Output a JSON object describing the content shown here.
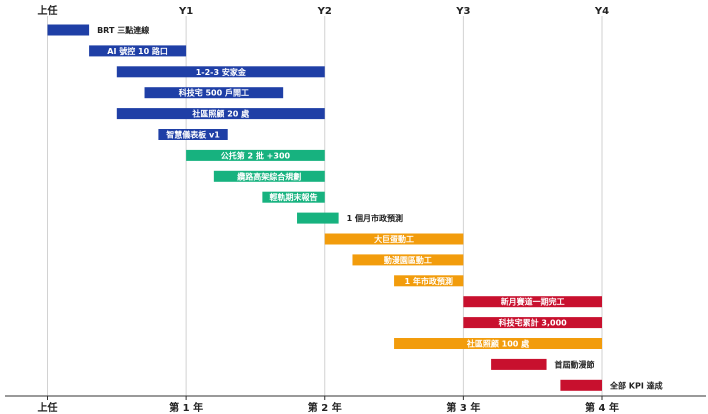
{
  "chart_data": {
    "type": "bar",
    "subtype": "gantt",
    "x_unit": "quarter",
    "xlim": [
      0,
      16
    ],
    "top_ticks": [
      {
        "x": 0,
        "label": "上任"
      },
      {
        "x": 4,
        "label": "Y1"
      },
      {
        "x": 8,
        "label": "Y2"
      },
      {
        "x": 12,
        "label": "Y3"
      },
      {
        "x": 16,
        "label": "Y4"
      }
    ],
    "bottom_ticks": [
      {
        "x": 0,
        "label": "上任"
      },
      {
        "x": 4,
        "label": "第 1 年"
      },
      {
        "x": 8,
        "label": "第 2 年"
      },
      {
        "x": 12,
        "label": "第 3 年"
      },
      {
        "x": 16,
        "label": "第 4 年"
      }
    ],
    "tasks": [
      {
        "label": "BRT 三點連線",
        "start": 0,
        "end": 1.2,
        "color": "#1f3fa6",
        "label_position": "outside"
      },
      {
        "label": "AI 號控 10 路口",
        "start": 1.2,
        "end": 4,
        "color": "#1f3fa6",
        "label_position": "inside"
      },
      {
        "label": "1-2-3 安家金",
        "start": 2,
        "end": 8,
        "color": "#1f3fa6",
        "label_position": "inside"
      },
      {
        "label": "科技宅 500 戶開工",
        "start": 2.8,
        "end": 6.8,
        "color": "#1f3fa6",
        "label_position": "inside"
      },
      {
        "label": "社區照顧 20 處",
        "start": 2,
        "end": 8,
        "color": "#1f3fa6",
        "label_position": "inside"
      },
      {
        "label": "智慧儀表板 v1",
        "start": 3.2,
        "end": 5.2,
        "color": "#1f3fa6",
        "label_position": "inside"
      },
      {
        "label": "公托第 2 批 +300",
        "start": 4,
        "end": 8,
        "color": "#17b27f",
        "label_position": "inside"
      },
      {
        "label": "纜路高架綜合規劃",
        "start": 4.8,
        "end": 8,
        "color": "#17b27f",
        "label_position": "inside"
      },
      {
        "label": "輕軌期末報告",
        "start": 6.2,
        "end": 8,
        "color": "#17b27f",
        "label_position": "inside"
      },
      {
        "label": "1 個月市政預測",
        "start": 7.2,
        "end": 8.4,
        "color": "#17b27f",
        "label_position": "outside"
      },
      {
        "label": "大巨蛋動工",
        "start": 8,
        "end": 12,
        "color": "#f29c0c",
        "label_position": "inside"
      },
      {
        "label": "動漫園區動工",
        "start": 8.8,
        "end": 12,
        "color": "#f29c0c",
        "label_position": "inside"
      },
      {
        "label": "1 年市政預測",
        "start": 10,
        "end": 12,
        "color": "#f29c0c",
        "label_position": "inside"
      },
      {
        "label": "新月賽道一期完工",
        "start": 12,
        "end": 16,
        "color": "#c8102e",
        "label_position": "inside"
      },
      {
        "label": "科技宅累計 3,000",
        "start": 12,
        "end": 16,
        "color": "#c8102e",
        "label_position": "inside"
      },
      {
        "label": "社區照顧 100 處",
        "start": 10,
        "end": 16,
        "color": "#f29c0c",
        "label_position": "inside"
      },
      {
        "label": "首屆動漫節",
        "start": 12.8,
        "end": 14.4,
        "color": "#c8102e",
        "label_position": "outside"
      },
      {
        "label": "全部 KPI 達成",
        "start": 14.8,
        "end": 16,
        "color": "#c8102e",
        "label_position": "outside"
      }
    ],
    "grid": true,
    "legend": false
  }
}
